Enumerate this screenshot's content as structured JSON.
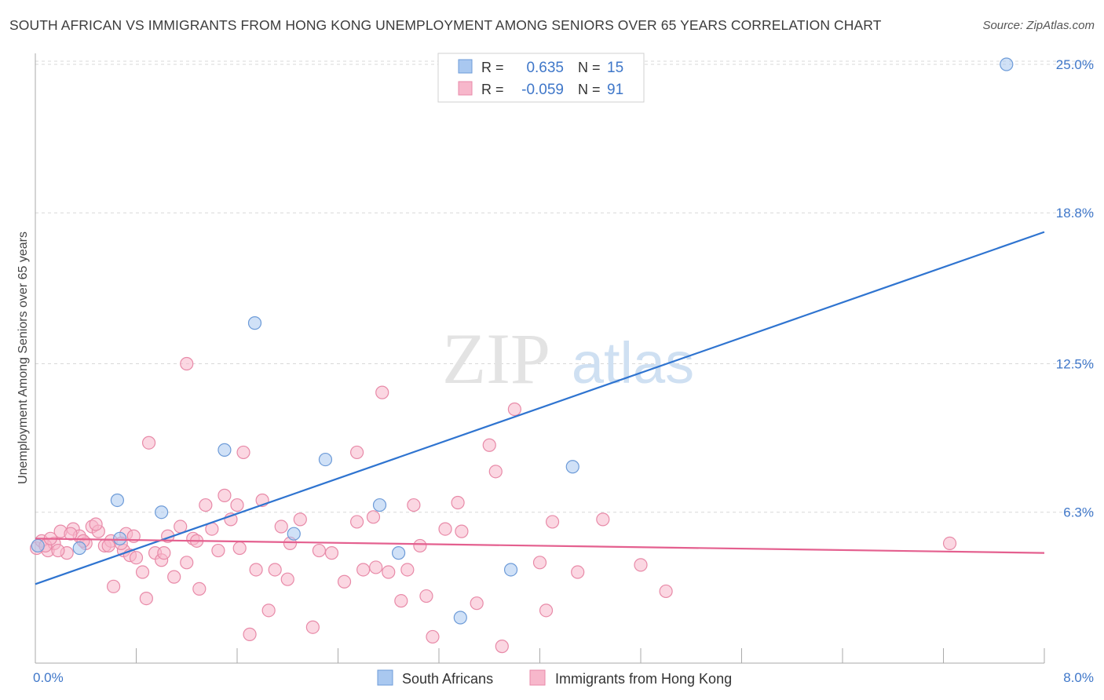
{
  "title": "SOUTH AFRICAN VS IMMIGRANTS FROM HONG KONG UNEMPLOYMENT AMONG SENIORS OVER 65 YEARS CORRELATION CHART",
  "source": "Source: ZipAtlas.com",
  "watermark": {
    "zip": "ZIP",
    "atlas": "atlas"
  },
  "colors": {
    "blue_fill": "#a9c8f0",
    "blue_stroke": "#6d9bd8",
    "blue_line": "#2f74d0",
    "pink_fill": "#f7b7cb",
    "pink_stroke": "#e88aa8",
    "pink_line": "#e4608f",
    "tick_label": "#3f77c9",
    "grid": "#d8d8d8"
  },
  "stats_legend": {
    "rows": [
      {
        "r_label": "R =",
        "r_value": "0.635",
        "n_label": "N =",
        "n_value": "15",
        "series": "blue"
      },
      {
        "r_label": "R =",
        "r_value": "-0.059",
        "n_label": "N =",
        "n_value": "91",
        "series": "pink"
      }
    ]
  },
  "chart_data": {
    "type": "scatter",
    "title": "SOUTH AFRICAN VS IMMIGRANTS FROM HONG KONG UNEMPLOYMENT AMONG SENIORS OVER 65 YEARS CORRELATION CHART",
    "xlabel": "",
    "ylabel": "Unemployment Among Seniors over 65 years",
    "xlim": [
      0,
      8
    ],
    "ylim": [
      0,
      26
    ],
    "x_tick_labels": [
      "0.0%",
      "8.0%"
    ],
    "y_ticks": [
      6.3,
      12.5,
      18.8,
      25.0
    ],
    "y_tick_labels": [
      "6.3%",
      "12.5%",
      "18.8%",
      "25.0%"
    ],
    "grid": true,
    "legend": [
      {
        "name": "South Africans",
        "swatch": "blue"
      },
      {
        "name": "Immigrants from Hong Kong",
        "swatch": "pink"
      }
    ],
    "series": [
      {
        "name": "South Africans",
        "color": "blue",
        "trend": {
          "x": [
            0,
            8
          ],
          "y": [
            3.3,
            18.0
          ]
        },
        "points": [
          {
            "x": 0.02,
            "y": 4.9
          },
          {
            "x": 0.35,
            "y": 4.8
          },
          {
            "x": 0.65,
            "y": 6.8
          },
          {
            "x": 1.0,
            "y": 6.3
          },
          {
            "x": 1.5,
            "y": 8.9
          },
          {
            "x": 1.74,
            "y": 14.2
          },
          {
            "x": 2.05,
            "y": 5.4
          },
          {
            "x": 2.3,
            "y": 8.5
          },
          {
            "x": 2.73,
            "y": 6.6
          },
          {
            "x": 2.88,
            "y": 4.6
          },
          {
            "x": 3.37,
            "y": 1.9
          },
          {
            "x": 3.77,
            "y": 3.9
          },
          {
            "x": 4.26,
            "y": 8.2
          },
          {
            "x": 0.67,
            "y": 5.2
          },
          {
            "x": 7.7,
            "y": 25.0
          }
        ]
      },
      {
        "name": "Immigrants from Hong Kong",
        "color": "pink",
        "trend": {
          "x": [
            0,
            8
          ],
          "y": [
            5.2,
            4.6
          ]
        },
        "points": [
          {
            "x": 0.01,
            "y": 4.8
          },
          {
            "x": 0.05,
            "y": 5.1
          },
          {
            "x": 0.1,
            "y": 4.7
          },
          {
            "x": 0.15,
            "y": 5.0
          },
          {
            "x": 0.2,
            "y": 5.5
          },
          {
            "x": 0.25,
            "y": 4.6
          },
          {
            "x": 0.3,
            "y": 5.6
          },
          {
            "x": 0.35,
            "y": 5.3
          },
          {
            "x": 0.4,
            "y": 5.0
          },
          {
            "x": 0.45,
            "y": 5.7
          },
          {
            "x": 0.5,
            "y": 5.5
          },
          {
            "x": 0.55,
            "y": 4.9
          },
          {
            "x": 0.6,
            "y": 5.1
          },
          {
            "x": 0.62,
            "y": 3.2
          },
          {
            "x": 0.7,
            "y": 4.7
          },
          {
            "x": 0.72,
            "y": 5.4
          },
          {
            "x": 0.75,
            "y": 4.5
          },
          {
            "x": 0.8,
            "y": 4.4
          },
          {
            "x": 0.85,
            "y": 3.8
          },
          {
            "x": 0.88,
            "y": 2.7
          },
          {
            "x": 0.9,
            "y": 9.2
          },
          {
            "x": 0.95,
            "y": 4.6
          },
          {
            "x": 1.0,
            "y": 4.3
          },
          {
            "x": 1.05,
            "y": 5.3
          },
          {
            "x": 1.1,
            "y": 3.6
          },
          {
            "x": 1.15,
            "y": 5.7
          },
          {
            "x": 1.2,
            "y": 4.2
          },
          {
            "x": 1.25,
            "y": 5.2
          },
          {
            "x": 1.3,
            "y": 3.1
          },
          {
            "x": 1.35,
            "y": 6.6
          },
          {
            "x": 1.4,
            "y": 5.6
          },
          {
            "x": 1.45,
            "y": 4.7
          },
          {
            "x": 1.5,
            "y": 7.0
          },
          {
            "x": 1.55,
            "y": 6.0
          },
          {
            "x": 1.6,
            "y": 6.6
          },
          {
            "x": 1.65,
            "y": 8.8
          },
          {
            "x": 1.7,
            "y": 1.2
          },
          {
            "x": 1.75,
            "y": 3.9
          },
          {
            "x": 1.8,
            "y": 6.8
          },
          {
            "x": 1.85,
            "y": 2.2
          },
          {
            "x": 1.9,
            "y": 3.9
          },
          {
            "x": 1.95,
            "y": 5.7
          },
          {
            "x": 2.0,
            "y": 3.5
          },
          {
            "x": 2.1,
            "y": 6.0
          },
          {
            "x": 2.2,
            "y": 1.5
          },
          {
            "x": 2.25,
            "y": 4.7
          },
          {
            "x": 2.35,
            "y": 4.6
          },
          {
            "x": 2.45,
            "y": 3.4
          },
          {
            "x": 2.55,
            "y": 8.8
          },
          {
            "x": 2.55,
            "y": 5.9
          },
          {
            "x": 2.6,
            "y": 3.9
          },
          {
            "x": 2.68,
            "y": 6.1
          },
          {
            "x": 2.7,
            "y": 4.0
          },
          {
            "x": 2.8,
            "y": 3.8
          },
          {
            "x": 2.9,
            "y": 2.6
          },
          {
            "x": 2.95,
            "y": 3.9
          },
          {
            "x": 3.0,
            "y": 6.6
          },
          {
            "x": 3.05,
            "y": 4.9
          },
          {
            "x": 3.1,
            "y": 2.8
          },
          {
            "x": 3.15,
            "y": 1.1
          },
          {
            "x": 3.25,
            "y": 5.6
          },
          {
            "x": 3.35,
            "y": 6.7
          },
          {
            "x": 3.38,
            "y": 5.5
          },
          {
            "x": 3.5,
            "y": 2.5
          },
          {
            "x": 3.6,
            "y": 9.1
          },
          {
            "x": 3.65,
            "y": 8.0
          },
          {
            "x": 3.7,
            "y": 0.7
          },
          {
            "x": 3.8,
            "y": 10.6
          },
          {
            "x": 4.0,
            "y": 4.2
          },
          {
            "x": 4.05,
            "y": 2.2
          },
          {
            "x": 4.1,
            "y": 5.9
          },
          {
            "x": 4.3,
            "y": 3.8
          },
          {
            "x": 4.5,
            "y": 6.0
          },
          {
            "x": 4.8,
            "y": 4.1
          },
          {
            "x": 5.0,
            "y": 3.0
          },
          {
            "x": 1.2,
            "y": 12.5
          },
          {
            "x": 2.75,
            "y": 11.3
          },
          {
            "x": 7.25,
            "y": 5.0
          },
          {
            "x": 0.08,
            "y": 4.9
          },
          {
            "x": 0.12,
            "y": 5.2
          },
          {
            "x": 0.18,
            "y": 4.7
          },
          {
            "x": 0.28,
            "y": 5.4
          },
          {
            "x": 0.38,
            "y": 5.1
          },
          {
            "x": 0.48,
            "y": 5.8
          },
          {
            "x": 0.58,
            "y": 4.9
          },
          {
            "x": 0.68,
            "y": 5.0
          },
          {
            "x": 0.78,
            "y": 5.3
          },
          {
            "x": 1.02,
            "y": 4.6
          },
          {
            "x": 1.28,
            "y": 5.1
          },
          {
            "x": 1.62,
            "y": 4.8
          },
          {
            "x": 2.02,
            "y": 5.0
          }
        ]
      }
    ]
  }
}
